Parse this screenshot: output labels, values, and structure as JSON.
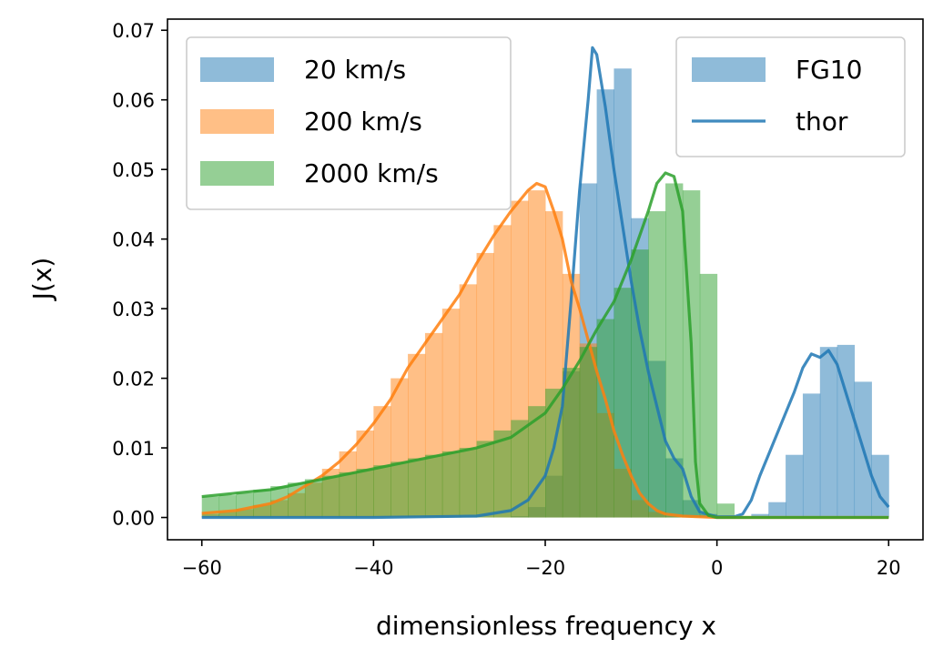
{
  "chart_data": {
    "type": "bar",
    "title": "",
    "xlabel": "dimensionless frequency x",
    "ylabel": "J(x)",
    "xlim": [
      -64,
      24
    ],
    "ylim": [
      -0.0032,
      0.0716
    ],
    "xticks": [
      -60,
      -40,
      -20,
      0,
      20
    ],
    "xtick_labels": [
      "−60",
      "−40",
      "−20",
      "0",
      "20"
    ],
    "yticks": [
      0.0,
      0.01,
      0.02,
      0.03,
      0.04,
      0.05,
      0.06,
      0.07
    ],
    "ytick_labels": [
      "0.00",
      "0.01",
      "0.02",
      "0.03",
      "0.04",
      "0.05",
      "0.06",
      "0.07"
    ],
    "grid": false,
    "hist_bins": [
      -60,
      -58,
      -56,
      -54,
      -52,
      -50,
      -48,
      -46,
      -44,
      -42,
      -40,
      -38,
      -36,
      -34,
      -32,
      -30,
      -28,
      -26,
      -24,
      -22,
      -20,
      -18,
      -16,
      -14,
      -12,
      -10,
      -8,
      -6,
      -4,
      -2,
      0,
      2,
      4,
      6,
      8,
      10,
      12,
      14,
      16,
      18,
      20
    ],
    "series": [
      {
        "name": "20 km/s",
        "color": "#1f77b4",
        "hist_values": [
          0,
          0,
          0,
          0,
          0,
          0,
          0,
          0,
          0,
          0,
          0,
          0,
          0,
          0,
          0,
          0,
          0,
          0,
          0.0002,
          0.0015,
          0.006,
          0.021,
          0.048,
          0.0615,
          0.0645,
          0.043,
          0.0225,
          0.0085,
          0.0025,
          0.0005,
          0,
          0,
          0.0005,
          0.0022,
          0.009,
          0.0178,
          0.0245,
          0.0248,
          0.0195,
          0.009
        ],
        "thor_x": [
          -60,
          -40,
          -28,
          -24,
          -22,
          -20,
          -19,
          -18,
          -17,
          -16,
          -15,
          -14.5,
          -14,
          -13,
          -12,
          -11,
          -10,
          -9,
          -8,
          -7,
          -6,
          -5,
          -4,
          -3,
          -2,
          0,
          2,
          3,
          4,
          5,
          6,
          7,
          8,
          9,
          10,
          11,
          12,
          13,
          14,
          15,
          16,
          17,
          18,
          19,
          20
        ],
        "thor_y": [
          0,
          0,
          0.0002,
          0.001,
          0.0025,
          0.006,
          0.01,
          0.016,
          0.031,
          0.047,
          0.06,
          0.0675,
          0.0665,
          0.059,
          0.05,
          0.042,
          0.034,
          0.027,
          0.021,
          0.016,
          0.011,
          0.0085,
          0.007,
          0.003,
          0.0008,
          0.0001,
          0.0001,
          0.0005,
          0.0025,
          0.006,
          0.009,
          0.012,
          0.015,
          0.018,
          0.0215,
          0.0235,
          0.023,
          0.024,
          0.022,
          0.018,
          0.014,
          0.01,
          0.006,
          0.003,
          0.0015
        ]
      },
      {
        "name": "200 km/s",
        "color": "#ff7f0e",
        "hist_values": [
          0.0005,
          0.0008,
          0.0012,
          0.0018,
          0.0025,
          0.0035,
          0.005,
          0.007,
          0.0095,
          0.0125,
          0.016,
          0.02,
          0.0235,
          0.0265,
          0.03,
          0.0335,
          0.038,
          0.042,
          0.0455,
          0.047,
          0.044,
          0.035,
          0.025,
          0.015,
          0.007,
          0.0025,
          0.0008,
          0.0002,
          0,
          0,
          0,
          0,
          0,
          0,
          0,
          0,
          0,
          0,
          0,
          0
        ],
        "thor_x": [
          -60,
          -56,
          -52,
          -50,
          -48,
          -46,
          -44,
          -42,
          -40,
          -38,
          -36,
          -34,
          -32,
          -30,
          -28,
          -26,
          -24,
          -23,
          -22,
          -21,
          -20,
          -19,
          -18,
          -17,
          -16,
          -15,
          -14,
          -13,
          -12,
          -11,
          -10,
          -9,
          -8,
          -7,
          -6,
          -4,
          -2,
          0,
          20
        ],
        "thor_y": [
          0.0006,
          0.001,
          0.002,
          0.003,
          0.0045,
          0.006,
          0.008,
          0.0105,
          0.0135,
          0.017,
          0.0215,
          0.025,
          0.0285,
          0.032,
          0.0365,
          0.0405,
          0.044,
          0.0455,
          0.047,
          0.048,
          0.0475,
          0.044,
          0.04,
          0.034,
          0.03,
          0.0255,
          0.021,
          0.017,
          0.0125,
          0.009,
          0.006,
          0.0035,
          0.002,
          0.001,
          0.0005,
          0.0002,
          0.0001,
          0,
          0
        ]
      },
      {
        "name": "2000 km/s",
        "color": "#2ca02c",
        "hist_values": [
          0.003,
          0.0032,
          0.0035,
          0.004,
          0.0045,
          0.005,
          0.0055,
          0.006,
          0.0065,
          0.007,
          0.0075,
          0.008,
          0.0085,
          0.009,
          0.0095,
          0.01,
          0.011,
          0.0125,
          0.014,
          0.016,
          0.0185,
          0.0215,
          0.0245,
          0.0285,
          0.033,
          0.0385,
          0.044,
          0.048,
          0.047,
          0.035,
          0.002,
          0,
          0,
          0,
          0,
          0,
          0,
          0,
          0,
          0
        ],
        "thor_x": [
          -60,
          -56,
          -52,
          -50,
          -48,
          -44,
          -40,
          -36,
          -32,
          -28,
          -24,
          -20,
          -18,
          -16,
          -14,
          -12,
          -10,
          -8,
          -7,
          -6,
          -5,
          -4,
          -3,
          -2.5,
          -2,
          -1,
          0,
          20
        ],
        "thor_y": [
          0.003,
          0.0035,
          0.004,
          0.0045,
          0.005,
          0.006,
          0.007,
          0.008,
          0.009,
          0.01,
          0.0115,
          0.015,
          0.0185,
          0.0225,
          0.027,
          0.031,
          0.037,
          0.044,
          0.048,
          0.0495,
          0.049,
          0.044,
          0.025,
          0.008,
          0.002,
          0.0003,
          0,
          0
        ]
      }
    ],
    "legend_colors": {
      "name": "",
      "entries": [
        "20 km/s",
        "200 km/s",
        "2000 km/s"
      ],
      "placement": "top-left"
    },
    "legend_methods": {
      "entries": [
        {
          "label": "FG10",
          "color": "#1f77b4",
          "kind": "patch"
        },
        {
          "label": "thor",
          "color": "#1f77b4",
          "kind": "line"
        }
      ],
      "placement": "top-right"
    }
  }
}
